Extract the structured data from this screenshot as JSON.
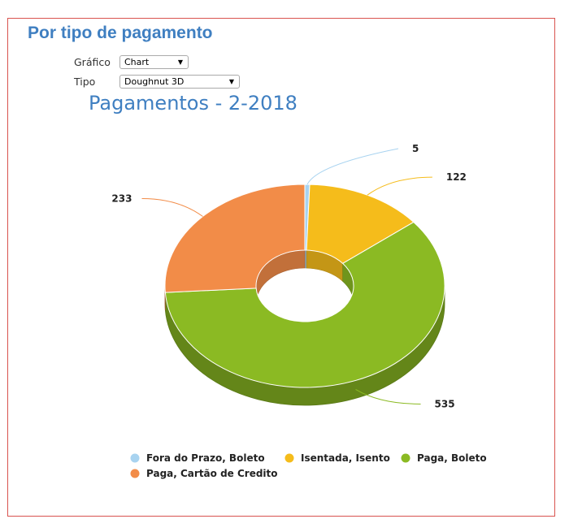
{
  "panel": {
    "title": "Por tipo de pagamento",
    "grafico_label": "Gráfico",
    "grafico_value": "Chart",
    "tipo_label": "Tipo",
    "tipo_value": "Doughnut 3D"
  },
  "chart_data": {
    "type": "pie",
    "subtype": "doughnut-3d",
    "title": "Pagamentos - 2-2018",
    "categories": [
      "Fora do Prazo, Boleto",
      "Isentada, Isento",
      "Paga, Boleto",
      "Paga, Cartão de Credito"
    ],
    "values": [
      5,
      122,
      535,
      233
    ],
    "data_labels": [
      "5",
      "122",
      "535",
      "233"
    ],
    "colors": [
      "#a8d3f0",
      "#f5bc1b",
      "#8bba23",
      "#f28c48"
    ],
    "legend_position": "bottom"
  }
}
